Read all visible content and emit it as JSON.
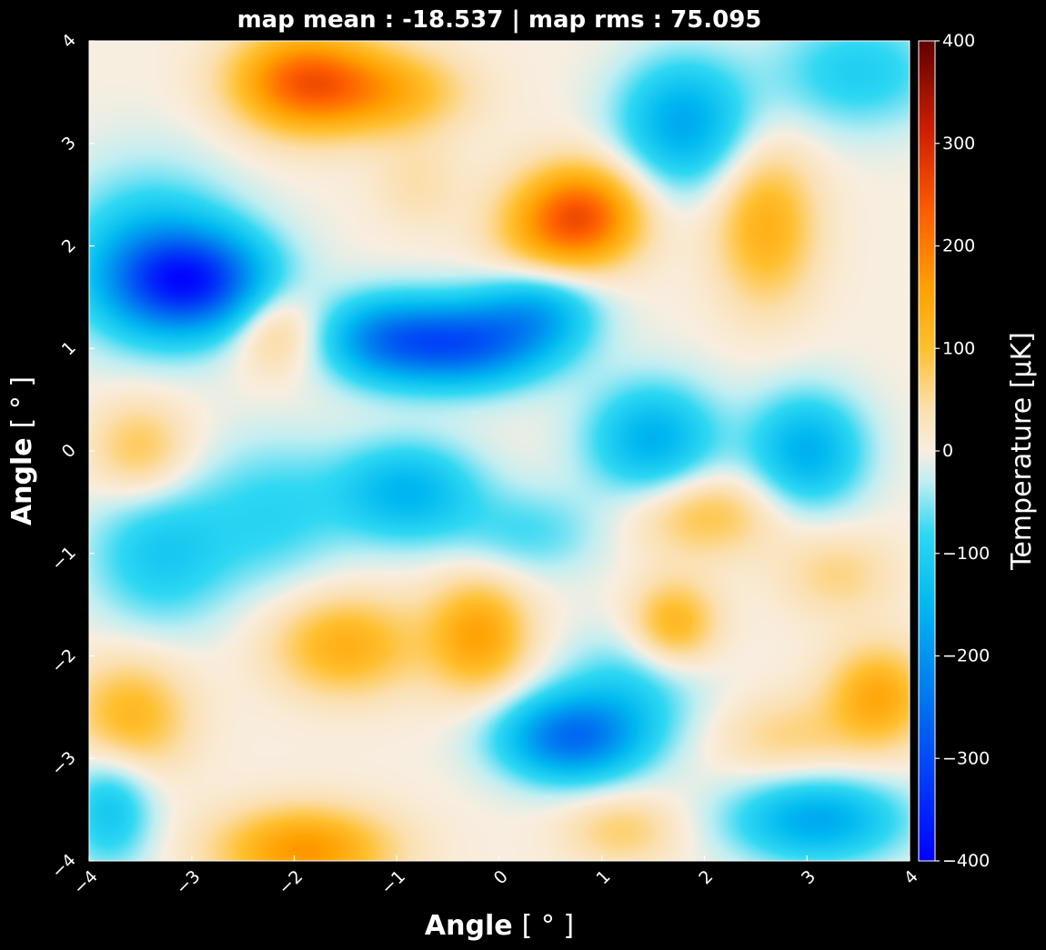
{
  "chart_data": {
    "type": "heatmap",
    "title": "map mean : -18.537 | map rms : 75.095",
    "xlabel": "Angle [ ° ]",
    "xlabel_parts": {
      "bold": "Angle",
      "unit": "[ ° ]"
    },
    "ylabel": "Angle [ ° ]",
    "ylabel_parts": {
      "bold": "Angle",
      "unit": "[ ° ]"
    },
    "xlim": [
      -4,
      4
    ],
    "ylim": [
      -4,
      4
    ],
    "x_ticks": [
      -4,
      -3,
      -2,
      -1,
      0,
      1,
      2,
      3,
      4
    ],
    "x_tick_labels": [
      "−4",
      "−3",
      "−2",
      "−1",
      "0",
      "1",
      "2",
      "3",
      "4"
    ],
    "y_ticks": [
      -4,
      -3,
      -2,
      -1,
      0,
      1,
      2,
      3,
      4
    ],
    "y_tick_labels": [
      "−4",
      "−3",
      "−2",
      "−1",
      "0",
      "1",
      "2",
      "3",
      "4"
    ],
    "colorbar": {
      "label": "Temperature [μK]",
      "range": [
        -400,
        400
      ],
      "ticks": [
        -400,
        -300,
        -200,
        -100,
        0,
        100,
        200,
        300,
        400
      ],
      "tick_labels": [
        "−400",
        "−300",
        "−200",
        "−100",
        "0",
        "100",
        "200",
        "300",
        "400"
      ],
      "colormap_stops": [
        {
          "value": -400,
          "color": "#0000ff"
        },
        {
          "value": -250,
          "color": "#0070f0"
        },
        {
          "value": -150,
          "color": "#00b8f0"
        },
        {
          "value": -80,
          "color": "#30d8f2"
        },
        {
          "value": -30,
          "color": "#c0eef2"
        },
        {
          "value": 0,
          "color": "#f8eee0"
        },
        {
          "value": 40,
          "color": "#fbe0b0"
        },
        {
          "value": 100,
          "color": "#ffc030"
        },
        {
          "value": 160,
          "color": "#ffa000"
        },
        {
          "value": 230,
          "color": "#ff6000"
        },
        {
          "value": 310,
          "color": "#d02000"
        },
        {
          "value": 400,
          "color": "#600000"
        }
      ]
    },
    "features": [
      {
        "x": -3.0,
        "y": 1.65,
        "value": -300,
        "sx": 0.55,
        "sy": 0.35
      },
      {
        "x": -3.4,
        "y": 1.9,
        "value": -120,
        "sx": 0.6,
        "sy": 0.6
      },
      {
        "x": -0.4,
        "y": 1.05,
        "value": -280,
        "sx": 0.6,
        "sy": 0.3
      },
      {
        "x": -1.2,
        "y": 1.1,
        "value": -130,
        "sx": 0.4,
        "sy": 0.3
      },
      {
        "x": 0.4,
        "y": 1.4,
        "value": -140,
        "sx": 0.4,
        "sy": 0.3
      },
      {
        "x": 0.7,
        "y": -2.8,
        "value": -240,
        "sx": 0.5,
        "sy": 0.3
      },
      {
        "x": 1.3,
        "y": -2.3,
        "value": -80,
        "sx": 0.5,
        "sy": 0.4
      },
      {
        "x": 3.1,
        "y": -3.6,
        "value": -170,
        "sx": 0.6,
        "sy": 0.3
      },
      {
        "x": 1.5,
        "y": 0.1,
        "value": -160,
        "sx": 0.45,
        "sy": 0.4
      },
      {
        "x": 3.0,
        "y": 0.0,
        "value": -160,
        "sx": 0.4,
        "sy": 0.4
      },
      {
        "x": -0.9,
        "y": -0.4,
        "value": -150,
        "sx": 0.5,
        "sy": 0.35
      },
      {
        "x": 1.8,
        "y": 3.2,
        "value": -170,
        "sx": 0.45,
        "sy": 0.45
      },
      {
        "x": 3.5,
        "y": 3.7,
        "value": -100,
        "sx": 0.6,
        "sy": 0.4
      },
      {
        "x": -3.3,
        "y": -1.0,
        "value": -110,
        "sx": 0.5,
        "sy": 0.5
      },
      {
        "x": -2.2,
        "y": -0.6,
        "value": -80,
        "sx": 0.5,
        "sy": 0.5
      },
      {
        "x": -3.8,
        "y": -3.5,
        "value": -120,
        "sx": 0.3,
        "sy": 0.4
      },
      {
        "x": 0.3,
        "y": -0.8,
        "value": -70,
        "sx": 0.5,
        "sy": 0.3
      },
      {
        "x": -1.9,
        "y": 3.6,
        "value": 230,
        "sx": 0.5,
        "sy": 0.35
      },
      {
        "x": -1.0,
        "y": 3.5,
        "value": 110,
        "sx": 0.5,
        "sy": 0.3
      },
      {
        "x": 0.85,
        "y": 2.3,
        "value": 210,
        "sx": 0.4,
        "sy": 0.35
      },
      {
        "x": 0.4,
        "y": 2.1,
        "value": 90,
        "sx": 0.4,
        "sy": 0.4
      },
      {
        "x": 2.6,
        "y": 2.2,
        "value": 130,
        "sx": 0.35,
        "sy": 0.55
      },
      {
        "x": -2.2,
        "y": 1.2,
        "value": 90,
        "sx": 0.3,
        "sy": 0.3
      },
      {
        "x": -3.5,
        "y": 0.0,
        "value": 90,
        "sx": 0.35,
        "sy": 0.35
      },
      {
        "x": -1.5,
        "y": -1.9,
        "value": 130,
        "sx": 0.5,
        "sy": 0.35
      },
      {
        "x": -0.2,
        "y": -1.8,
        "value": 150,
        "sx": 0.35,
        "sy": 0.4
      },
      {
        "x": 1.7,
        "y": -1.7,
        "value": 130,
        "sx": 0.3,
        "sy": 0.3
      },
      {
        "x": 2.0,
        "y": -0.6,
        "value": 100,
        "sx": 0.5,
        "sy": 0.3
      },
      {
        "x": -1.9,
        "y": -3.9,
        "value": 170,
        "sx": 0.6,
        "sy": 0.3
      },
      {
        "x": -3.6,
        "y": -2.6,
        "value": 120,
        "sx": 0.4,
        "sy": 0.4
      },
      {
        "x": 3.7,
        "y": -2.4,
        "value": 140,
        "sx": 0.35,
        "sy": 0.35
      },
      {
        "x": 2.8,
        "y": -2.8,
        "value": 60,
        "sx": 0.5,
        "sy": 0.3
      },
      {
        "x": 3.3,
        "y": -1.2,
        "value": 60,
        "sx": 0.4,
        "sy": 0.3
      },
      {
        "x": 1.2,
        "y": -3.7,
        "value": 70,
        "sx": 0.4,
        "sy": 0.25
      },
      {
        "x": -0.8,
        "y": 2.6,
        "value": 40,
        "sx": 0.3,
        "sy": 0.3
      }
    ]
  }
}
